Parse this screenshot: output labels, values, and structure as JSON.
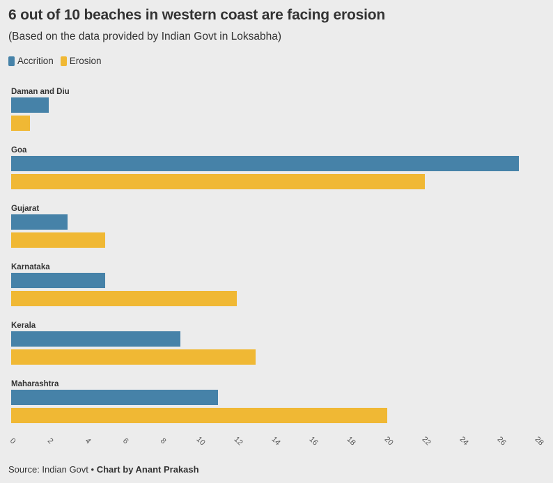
{
  "title": "6 out of 10 beaches in western coast are facing erosion",
  "subtitle": "(Based on the data provided by Indian Govt in Loksabha)",
  "legend": {
    "items": [
      {
        "label": "Accrition",
        "color": "#4682a8"
      },
      {
        "label": "Erosion",
        "color": "#f0b834"
      }
    ]
  },
  "footer": {
    "source": "Source: Indian Govt",
    "separator": " • ",
    "credit": "Chart by Anant Prakash"
  },
  "chart_data": {
    "type": "bar",
    "orientation": "horizontal",
    "categories": [
      "Daman and Diu",
      "Goa",
      "Gujarat",
      "Karnataka",
      "Kerala",
      "Maharashtra"
    ],
    "series": [
      {
        "name": "Accrition",
        "color": "#4682a8",
        "values": [
          2,
          27,
          3,
          5,
          9,
          11
        ]
      },
      {
        "name": "Erosion",
        "color": "#f0b834",
        "values": [
          1,
          22,
          5,
          12,
          13,
          20
        ]
      }
    ],
    "xlim": [
      0,
      28
    ],
    "xticks": [
      "0",
      "2",
      "4",
      "6",
      "8",
      "10",
      "12",
      "14",
      "16",
      "18",
      "20",
      "22",
      "24",
      "26",
      "28"
    ],
    "grid": false,
    "legend_position": "top-left"
  }
}
